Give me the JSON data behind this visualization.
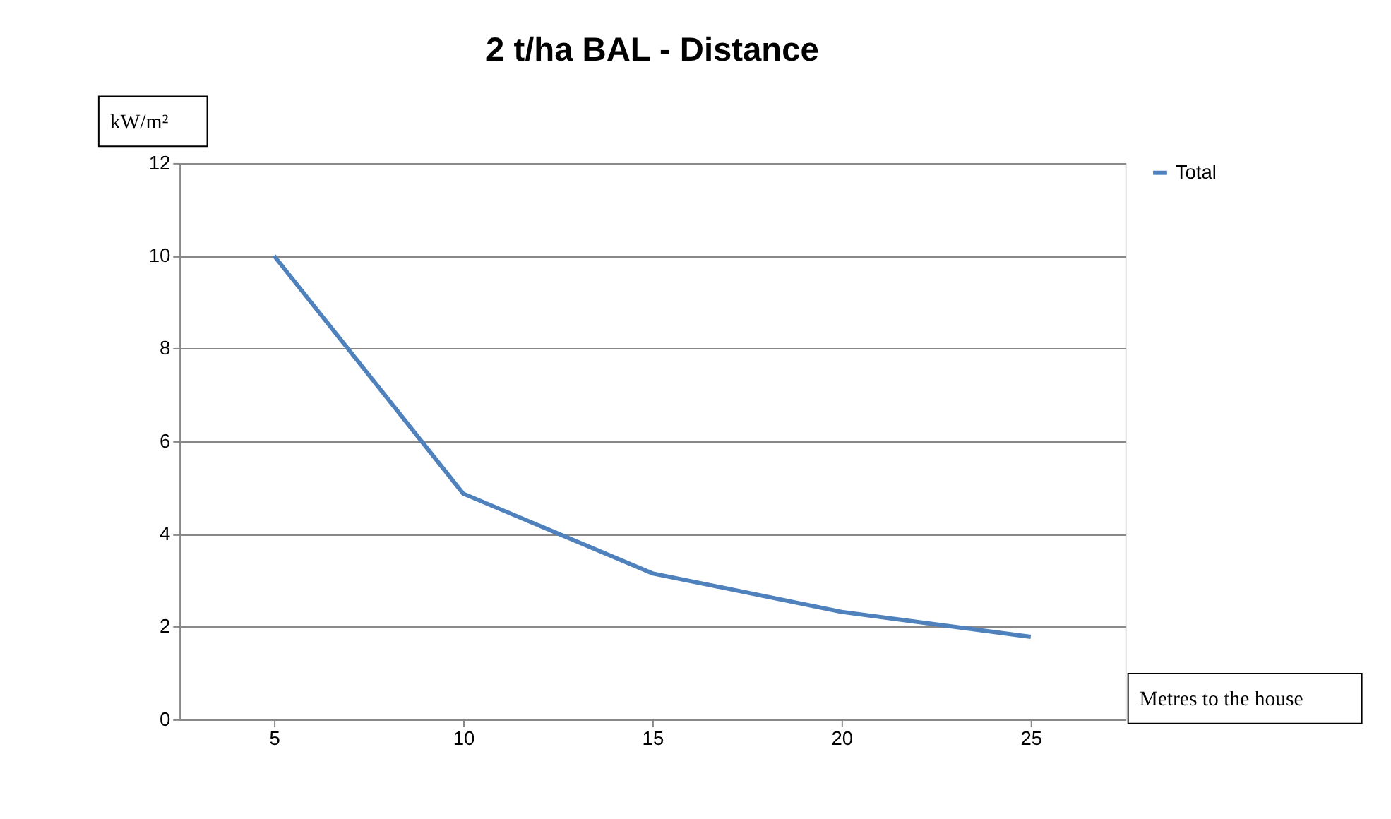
{
  "chart_data": {
    "type": "line",
    "title": "2 t/ha BAL - Distance",
    "ylabel": "kW/m²",
    "xlabel": "Metres to the house",
    "categories": [
      "5",
      "10",
      "15",
      "20",
      "25"
    ],
    "series": [
      {
        "name": "Total",
        "color": "#4f81bd",
        "values": [
          10,
          4.87,
          3.15,
          2.32,
          1.78
        ]
      }
    ],
    "ylim": [
      0,
      12
    ],
    "yticks": [
      0,
      2,
      4,
      6,
      8,
      10,
      12
    ],
    "grid": "y",
    "legend": "right",
    "marker": "none",
    "line_style": "solid"
  }
}
